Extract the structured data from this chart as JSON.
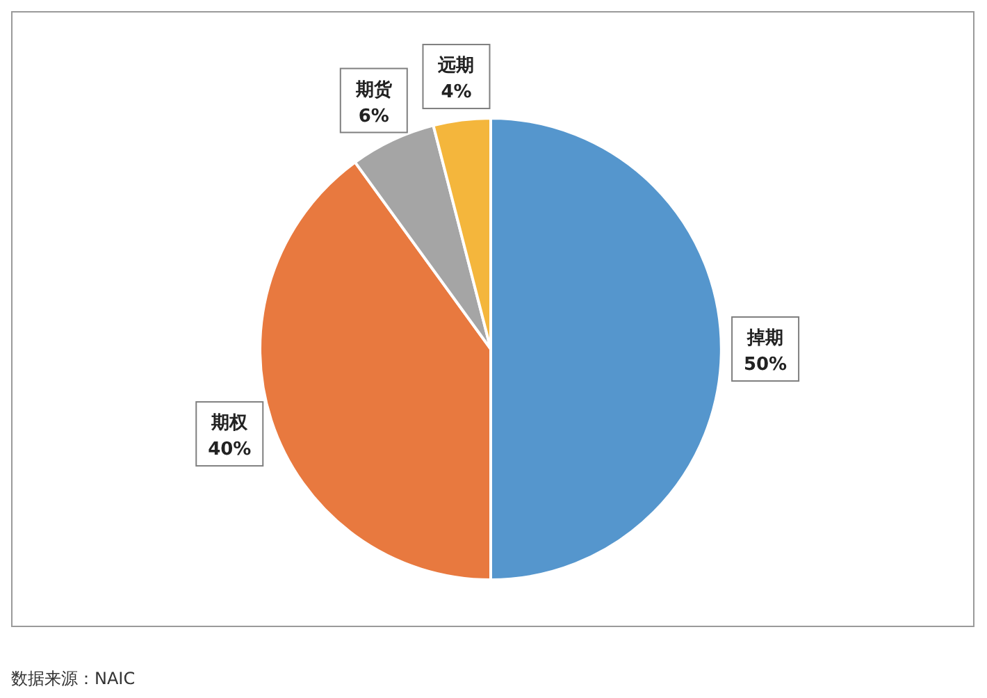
{
  "chart_data": {
    "type": "pie",
    "categories": [
      "掉期",
      "期权",
      "期货",
      "远期"
    ],
    "values": [
      50,
      40,
      6,
      4
    ],
    "colors": [
      "#5596cd",
      "#e8793f",
      "#a5a5a5",
      "#f4b63c"
    ],
    "value_labels": [
      "50%",
      "40%",
      "6%",
      "4%"
    ],
    "legend": false,
    "annotations": [
      "数据来源：NAIC"
    ]
  }
}
